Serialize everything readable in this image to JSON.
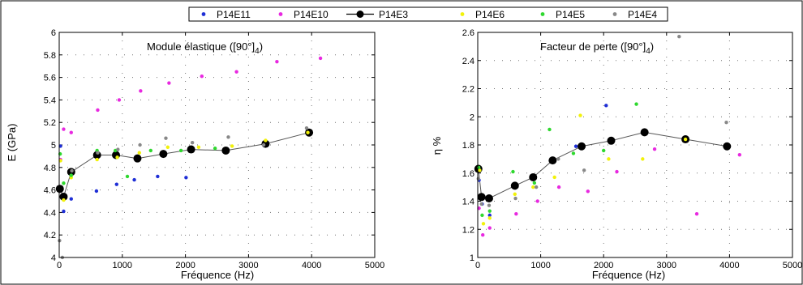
{
  "legend": {
    "placement": "top-center",
    "entries": [
      {
        "label": "P14E11",
        "color": "#1f2fd6",
        "marker": "dot"
      },
      {
        "label": "P14E10",
        "color": "#e829e0",
        "marker": "dot"
      },
      {
        "label": "P14E3",
        "color": "#000000",
        "marker": "line-dot"
      },
      {
        "label": "P14E6",
        "color": "#f2f20a",
        "marker": "dot"
      },
      {
        "label": "P14E5",
        "color": "#2fd82f",
        "marker": "dot"
      },
      {
        "label": "P14E4",
        "color": "#888888",
        "marker": "dot"
      }
    ]
  },
  "chart_data": [
    {
      "type": "scatter",
      "title": "Module élastique ([90°]",
      "title_subscript": "4",
      "title_close": ")",
      "xlabel": "Fréquence (Hz)",
      "ylabel": "E (GPa)",
      "xlim": [
        0,
        5000
      ],
      "ylim": [
        4,
        6
      ],
      "xticks": [
        "0",
        "1000",
        "2000",
        "3000",
        "4000",
        "5000"
      ],
      "yticks": [
        "4",
        "4.2",
        "4.4",
        "4.6",
        "4.8",
        "5",
        "5.2",
        "5.4",
        "5.6",
        "5.8",
        "6"
      ],
      "grid": "dotted",
      "series": [
        {
          "name": "P14E11",
          "points": [
            [
              20,
              4.99
            ],
            [
              70,
              4.41
            ],
            [
              190,
              4.52
            ],
            [
              590,
              4.59
            ],
            [
              910,
              4.65
            ],
            [
              1190,
              4.69
            ],
            [
              1560,
              4.72
            ],
            [
              2010,
              4.71
            ]
          ]
        },
        {
          "name": "P14E10",
          "points": [
            [
              20,
              4.87
            ],
            [
              70,
              5.14
            ],
            [
              190,
              5.11
            ],
            [
              610,
              5.31
            ],
            [
              950,
              5.4
            ],
            [
              1290,
              5.48
            ],
            [
              1740,
              5.55
            ],
            [
              2260,
              5.61
            ],
            [
              2810,
              5.65
            ],
            [
              3450,
              5.74
            ],
            [
              4140,
              5.77
            ]
          ]
        },
        {
          "name": "P14E3",
          "line": true,
          "points": [
            [
              10,
              4.61
            ],
            [
              70,
              4.54
            ],
            [
              190,
              4.76
            ],
            [
              600,
              4.91
            ],
            [
              900,
              4.91
            ],
            [
              1240,
              4.88
            ],
            [
              1650,
              4.92
            ],
            [
              2090,
              4.96
            ],
            [
              2640,
              4.95
            ],
            [
              3270,
              5.01
            ],
            [
              3960,
              5.11
            ]
          ]
        },
        {
          "name": "P14E6",
          "points": [
            [
              20,
              4.86
            ],
            [
              70,
              4.51
            ],
            [
              190,
              4.71
            ],
            [
              600,
              4.87
            ],
            [
              920,
              4.89
            ],
            [
              1270,
              4.93
            ],
            [
              1720,
              4.98
            ],
            [
              2210,
              4.98
            ],
            [
              2740,
              4.99
            ],
            [
              3270,
              5.04
            ],
            [
              3940,
              5.11
            ]
          ]
        },
        {
          "name": "P14E5",
          "points": [
            [
              15,
              4.92
            ],
            [
              70,
              4.66
            ],
            [
              190,
              4.73
            ],
            [
              600,
              4.95
            ],
            [
              890,
              4.95
            ],
            [
              1080,
              4.72
            ],
            [
              1450,
              4.95
            ],
            [
              1930,
              4.95
            ],
            [
              2470,
              4.97
            ]
          ]
        },
        {
          "name": "P14E4",
          "points": [
            [
              5,
              4.15
            ],
            [
              50,
              4.0
            ],
            [
              200,
              4.77
            ],
            [
              610,
              4.93
            ],
            [
              930,
              4.96
            ],
            [
              1280,
              5.0
            ],
            [
              1690,
              5.06
            ],
            [
              2110,
              5.02
            ],
            [
              2680,
              5.07
            ],
            [
              3240,
              5.0
            ],
            [
              3920,
              5.15
            ]
          ]
        }
      ]
    },
    {
      "type": "scatter",
      "title": "Facteur de perte ([90°]",
      "title_subscript": "4",
      "title_close": ")",
      "xlabel": "Fréquence (Hz)",
      "ylabel": "η %",
      "xlim": [
        0,
        5000
      ],
      "ylim": [
        1,
        2.6
      ],
      "xticks": [
        "0",
        "1000",
        "2000",
        "3000",
        "4000",
        "5000"
      ],
      "yticks": [
        "1",
        "1.2",
        "1.4",
        "1.6",
        "1.8",
        "2",
        "2.2",
        "2.4",
        "2.6"
      ],
      "grid": "dotted",
      "series": [
        {
          "name": "P14E11",
          "points": [
            [
              20,
              1.55
            ],
            [
              70,
              1.38
            ],
            [
              190,
              1.3
            ],
            [
              1560,
              1.79
            ],
            [
              2040,
              2.08
            ]
          ]
        },
        {
          "name": "P14E10",
          "points": [
            [
              20,
              1.35
            ],
            [
              80,
              1.16
            ],
            [
              190,
              1.21
            ],
            [
              610,
              1.31
            ],
            [
              950,
              1.4
            ],
            [
              1290,
              1.5
            ],
            [
              1750,
              1.47
            ],
            [
              2210,
              1.61
            ],
            [
              2810,
              1.77
            ],
            [
              3480,
              1.31
            ],
            [
              4160,
              1.73
            ]
          ]
        },
        {
          "name": "P14E3",
          "line": true,
          "points": [
            [
              10,
              1.63
            ],
            [
              60,
              1.43
            ],
            [
              180,
              1.42
            ],
            [
              590,
              1.51
            ],
            [
              880,
              1.57
            ],
            [
              1190,
              1.69
            ],
            [
              1650,
              1.79
            ],
            [
              2120,
              1.83
            ],
            [
              2650,
              1.89
            ],
            [
              3300,
              1.84
            ],
            [
              3960,
              1.79
            ]
          ]
        },
        {
          "name": "P14E6",
          "points": [
            [
              30,
              1.62
            ],
            [
              90,
              1.24
            ],
            [
              190,
              1.28
            ],
            [
              590,
              1.45
            ],
            [
              880,
              1.5
            ],
            [
              1220,
              1.57
            ],
            [
              1630,
              2.01
            ],
            [
              2080,
              1.7
            ],
            [
              2620,
              1.7
            ],
            [
              3300,
              1.84
            ]
          ]
        },
        {
          "name": "P14E5",
          "points": [
            [
              15,
              1.64
            ],
            [
              70,
              1.3
            ],
            [
              190,
              1.33
            ],
            [
              560,
              1.61
            ],
            [
              900,
              1.53
            ],
            [
              1140,
              1.91
            ],
            [
              1520,
              1.74
            ],
            [
              2000,
              1.76
            ],
            [
              2520,
              2.09
            ]
          ]
        },
        {
          "name": "P14E4",
          "points": [
            [
              10,
              1.56
            ],
            [
              60,
              1.38
            ],
            [
              180,
              1.37
            ],
            [
              600,
              1.42
            ],
            [
              930,
              1.5
            ],
            [
              1280,
              1.7
            ],
            [
              1690,
              1.62
            ],
            [
              3200,
              2.57
            ],
            [
              3950,
              1.96
            ]
          ]
        }
      ]
    }
  ]
}
